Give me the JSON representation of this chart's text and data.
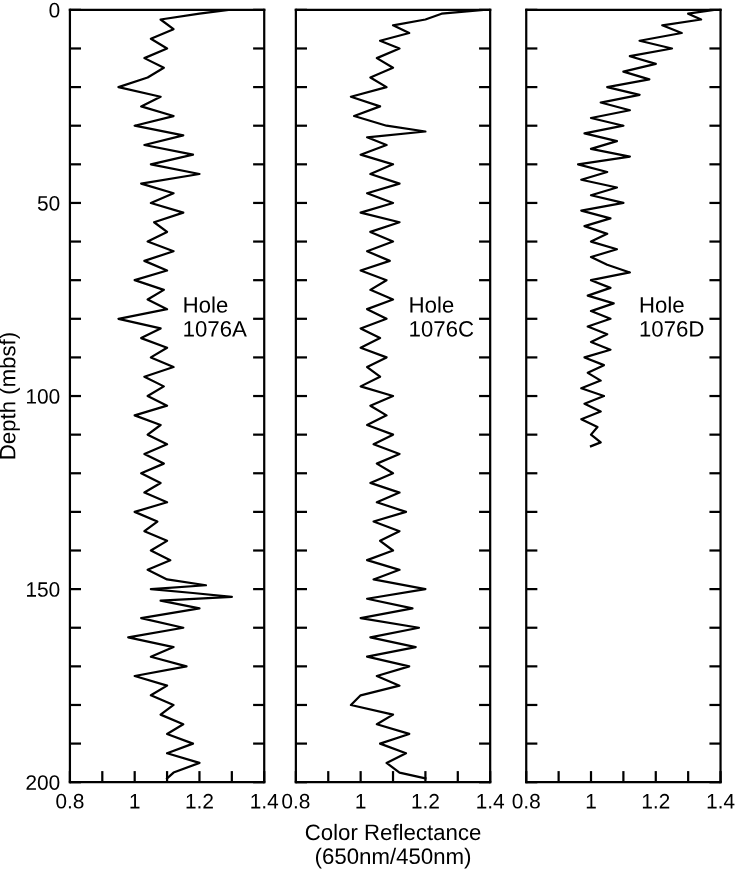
{
  "chart_data": [
    {
      "type": "line",
      "ylabel": "Depth (mbsf)",
      "annotations": [
        "Hole\n1076A"
      ],
      "xlim": [
        0.8,
        1.4
      ],
      "ylim": [
        200,
        0
      ],
      "xticks": [
        0.8,
        {
          "value": 0.9,
          "label": null
        },
        1,
        {
          "value": 1.1,
          "label": null
        },
        1.2,
        {
          "value": 1.3,
          "label": null
        },
        1.4
      ],
      "yticks": [
        0,
        {
          "value": 10,
          "label": null
        },
        {
          "value": 20,
          "label": null
        },
        {
          "value": 30,
          "label": null
        },
        {
          "value": 40,
          "label": null
        },
        50,
        {
          "value": 60,
          "label": null
        },
        {
          "value": 70,
          "label": null
        },
        {
          "value": 80,
          "label": null
        },
        {
          "value": 90,
          "label": null
        },
        100,
        {
          "value": 110,
          "label": null
        },
        {
          "value": 120,
          "label": null
        },
        {
          "value": 130,
          "label": null
        },
        {
          "value": 140,
          "label": null
        },
        150,
        {
          "value": 160,
          "label": null
        },
        {
          "value": 170,
          "label": null
        },
        {
          "value": 180,
          "label": null
        },
        {
          "value": 190,
          "label": null
        },
        200
      ],
      "series": [
        {
          "color": "#000000",
          "x": [
            1.29,
            1.2,
            1.08,
            1.12,
            1.05,
            1.1,
            1.03,
            1.09,
            1.04,
            0.95,
            1.08,
            1.02,
            1.12,
            1.0,
            1.15,
            1.03,
            1.18,
            1.05,
            1.2,
            1.02,
            1.12,
            1.05,
            1.15,
            1.06,
            1.1,
            1.04,
            1.12,
            1.03,
            1.1,
            1.0,
            1.09,
            1.04,
            1.1,
            0.95,
            1.08,
            1.02,
            1.1,
            1.05,
            1.12,
            1.03,
            1.09,
            1.04,
            1.1,
            1.0,
            1.08,
            1.04,
            1.1,
            1.03,
            1.09,
            1.02,
            1.08,
            1.03,
            1.1,
            1.0,
            1.07,
            1.03,
            1.1,
            1.05,
            1.11,
            1.04,
            1.1,
            1.22,
            1.05,
            1.18,
            1.3,
            1.08,
            1.2,
            1.02,
            1.15,
            0.98,
            1.12,
            1.05,
            1.16,
            1.0,
            1.1,
            1.05,
            1.12,
            1.08,
            1.15,
            1.1,
            1.18,
            1.1,
            1.2,
            1.12,
            1.1
          ],
          "values": [
            0,
            1,
            2.5,
            5,
            7.5,
            10,
            12.5,
            15,
            17.5,
            20,
            22.5,
            25,
            27.5,
            30,
            32.5,
            35,
            37.5,
            40,
            42.5,
            45,
            47.5,
            50,
            52.5,
            55,
            57.5,
            60,
            62.5,
            65,
            67.5,
            70,
            72.5,
            75,
            77.5,
            80,
            82.5,
            85,
            87.5,
            90,
            92.5,
            95,
            97.5,
            100,
            102.5,
            105,
            107.5,
            110,
            112.5,
            115,
            117.5,
            120,
            122.5,
            125,
            127.5,
            130,
            132.5,
            135,
            137.5,
            140,
            142.5,
            145,
            147.5,
            149,
            150,
            151,
            152,
            153,
            155,
            157.5,
            160,
            162.5,
            165,
            167.5,
            170,
            172.5,
            175,
            177.5,
            180,
            182.5,
            185,
            187.5,
            190,
            192.5,
            195,
            197.5,
            199
          ]
        }
      ]
    },
    {
      "type": "line",
      "xlabel": "Color Reflectance\n(650nm/450nm)",
      "annotations": [
        "Hole\n1076C"
      ],
      "tick_labels": "x",
      "xlim": [
        0.8,
        1.4
      ],
      "ylim": [
        200,
        0
      ],
      "xticks": [
        0.8,
        {
          "value": 0.9,
          "label": null
        },
        1,
        {
          "value": 1.1,
          "label": null
        },
        1.2,
        {
          "value": 1.3,
          "label": null
        },
        1.4
      ],
      "yticks": [
        0,
        10,
        20,
        30,
        40,
        50,
        60,
        70,
        80,
        90,
        100,
        110,
        120,
        130,
        140,
        150,
        160,
        170,
        180,
        190,
        200
      ],
      "series": [
        {
          "color": "#000000",
          "x": [
            1.38,
            1.25,
            1.2,
            1.1,
            1.15,
            1.06,
            1.12,
            1.05,
            1.1,
            1.03,
            1.08,
            0.97,
            1.06,
            0.98,
            1.08,
            1.2,
            1.02,
            1.08,
            1.0,
            1.1,
            1.03,
            1.12,
            1.02,
            1.1,
            1.0,
            1.12,
            1.03,
            1.1,
            1.02,
            1.09,
            1.0,
            1.08,
            1.03,
            1.1,
            1.02,
            1.08,
            1.0,
            1.06,
            1.0,
            1.08,
            1.02,
            1.06,
            1.0,
            1.1,
            1.03,
            1.08,
            1.02,
            1.1,
            1.04,
            1.12,
            1.05,
            1.1,
            1.03,
            1.12,
            1.05,
            1.14,
            1.04,
            1.12,
            1.06,
            1.1,
            1.02,
            1.12,
            1.04,
            1.2,
            1.02,
            1.16,
            1.0,
            1.18,
            1.03,
            1.17,
            1.02,
            1.15,
            1.05,
            1.12,
            1.0,
            0.97,
            1.1,
            1.05,
            1.15,
            1.06,
            1.14,
            1.08,
            1.12,
            1.2
          ],
          "values": [
            0,
            1,
            2.5,
            4,
            6,
            8,
            10,
            12.5,
            15,
            17.5,
            20,
            22.5,
            25,
            27.5,
            30,
            31.5,
            33,
            35,
            37.5,
            40,
            42.5,
            45,
            47.5,
            50,
            52.5,
            55,
            57.5,
            60,
            62.5,
            65,
            67.5,
            70,
            72.5,
            75,
            77.5,
            80,
            82.5,
            85,
            87.5,
            90,
            92.5,
            95,
            97.5,
            100,
            102.5,
            105,
            107.5,
            110,
            112.5,
            115,
            117.5,
            120,
            122.5,
            125,
            127.5,
            130,
            132.5,
            135,
            137.5,
            140,
            142.5,
            145,
            147.5,
            150,
            152.5,
            155,
            157.5,
            160,
            162.5,
            165,
            167.5,
            170,
            172.5,
            175,
            177.5,
            180,
            182.5,
            185,
            187.5,
            190,
            192.5,
            195,
            197.5,
            199
          ]
        }
      ]
    },
    {
      "type": "line",
      "annotations": [
        "Hole\n1076D"
      ],
      "tick_labels": "x",
      "xlim": [
        0.8,
        1.4
      ],
      "ylim": [
        200,
        0
      ],
      "xticks": [
        0.8,
        {
          "value": 0.9,
          "label": null
        },
        1,
        {
          "value": 1.1,
          "label": null
        },
        1.2,
        {
          "value": 1.3,
          "label": null
        },
        1.4
      ],
      "yticks": [
        0,
        10,
        20,
        30,
        40,
        50,
        60,
        70,
        80,
        90,
        100,
        110,
        120,
        130,
        140,
        150,
        160,
        170,
        180,
        190,
        200
      ],
      "series": [
        {
          "color": "#000000",
          "x": [
            1.38,
            1.3,
            1.34,
            1.22,
            1.28,
            1.15,
            1.25,
            1.12,
            1.2,
            1.1,
            1.18,
            1.05,
            1.15,
            1.03,
            1.12,
            1.0,
            1.1,
            0.98,
            1.08,
            1.0,
            1.12,
            0.96,
            1.05,
            0.97,
            1.08,
            1.0,
            1.1,
            0.97,
            1.06,
            0.98,
            1.05,
            1.0,
            1.08,
            1.0,
            1.05,
            1.12,
            1.0,
            1.06,
            0.99,
            1.07,
            1.0,
            1.06,
            0.99,
            1.05,
            1.0,
            1.06,
            0.98,
            1.04,
            0.99,
            1.03,
            0.97,
            1.04,
            0.98,
            1.03,
            0.97,
            1.02,
            1.0,
            1.03,
            1.0
          ],
          "values": [
            0,
            1,
            2.5,
            4,
            6,
            8,
            10,
            12,
            14,
            16,
            18,
            20,
            22,
            24,
            26,
            28,
            30,
            32,
            34,
            36,
            38,
            40,
            42,
            44,
            46,
            48,
            50,
            52,
            54,
            56,
            58,
            60,
            62,
            64,
            66,
            68,
            70,
            72,
            74,
            76,
            78,
            80,
            82,
            84,
            86,
            88,
            90,
            92,
            94,
            96,
            98,
            100,
            102,
            104,
            106,
            108,
            110,
            112,
            113
          ]
        }
      ]
    }
  ]
}
